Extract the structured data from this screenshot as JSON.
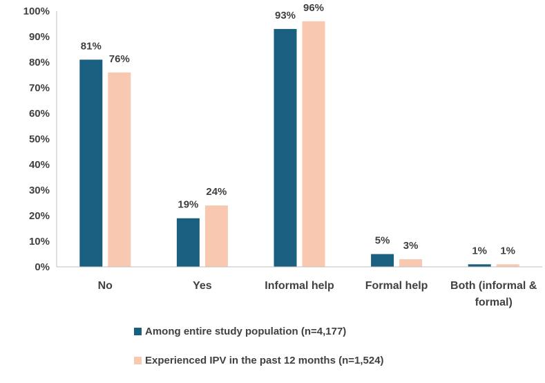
{
  "chart_data": {
    "type": "bar",
    "title": "",
    "xlabel": "",
    "ylabel": "",
    "ylim": [
      0,
      100
    ],
    "yticks": [
      "0%",
      "10%",
      "20%",
      "30%",
      "40%",
      "50%",
      "60%",
      "70%",
      "80%",
      "90%",
      "100%"
    ],
    "categories": [
      [
        "No"
      ],
      [
        "Yes"
      ],
      [
        "Informal help"
      ],
      [
        "Formal help"
      ],
      [
        "Both (informal &",
        "formal)"
      ]
    ],
    "series": [
      {
        "name": "Among entire study population (n=4,177)",
        "color": "#1b5f80",
        "values": [
          81,
          19,
          93,
          5,
          1
        ],
        "labels": [
          "81%",
          "19%",
          "93%",
          "5%",
          "1%"
        ]
      },
      {
        "name": "Experienced IPV in the past 12 months (n=1,524)",
        "color": "#f8c8b0",
        "values": [
          76,
          24,
          96,
          3,
          1
        ],
        "labels": [
          "76%",
          "24%",
          "96%",
          "3%",
          "1%"
        ]
      }
    ],
    "legend_position": "bottom",
    "grid": false
  }
}
